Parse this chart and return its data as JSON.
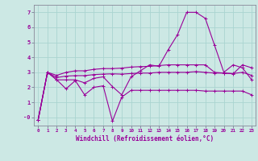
{
  "xlabel": "Windchill (Refroidissement éolien,°C)",
  "background_color": "#cce8e4",
  "grid_color": "#aad4d0",
  "line_color": "#990099",
  "xlim": [
    -0.5,
    23.4
  ],
  "ylim": [
    -0.55,
    7.5
  ],
  "xticks": [
    0,
    1,
    2,
    3,
    4,
    5,
    6,
    7,
    8,
    9,
    10,
    11,
    12,
    13,
    14,
    15,
    16,
    17,
    18,
    19,
    20,
    21,
    22,
    23
  ],
  "yticks": [
    0,
    1,
    2,
    3,
    4,
    5,
    6,
    7
  ],
  "ytick_labels": [
    "-0",
    "1",
    "2",
    "3",
    "4",
    "5",
    "6",
    "7"
  ],
  "line1_x": [
    0,
    1,
    2,
    3,
    4,
    5,
    6,
    7,
    8,
    9,
    10,
    11,
    12,
    13,
    14,
    15,
    16,
    17,
    18,
    19,
    20,
    21,
    22,
    23
  ],
  "line1_y": [
    -0.15,
    3.0,
    2.5,
    1.9,
    2.45,
    1.5,
    2.0,
    2.1,
    -0.25,
    1.35,
    1.8,
    1.8,
    1.8,
    1.8,
    1.8,
    1.8,
    1.8,
    1.8,
    1.75,
    1.75,
    1.75,
    1.75,
    1.75,
    1.5
  ],
  "line2_x": [
    0,
    1,
    2,
    3,
    4,
    5,
    6,
    7,
    8,
    9,
    10,
    11,
    12,
    13,
    14,
    15,
    16,
    17,
    18,
    19,
    20,
    21,
    22,
    23
  ],
  "line2_y": [
    -0.15,
    3.0,
    2.5,
    2.5,
    2.5,
    2.3,
    2.6,
    2.7,
    2.05,
    1.5,
    2.7,
    3.1,
    3.5,
    3.4,
    4.5,
    5.5,
    7.0,
    7.0,
    6.6,
    4.8,
    3.0,
    3.5,
    3.3,
    2.5
  ],
  "line3_x": [
    0,
    1,
    2,
    3,
    4,
    5,
    6,
    7,
    8,
    9,
    10,
    11,
    12,
    13,
    14,
    15,
    16,
    17,
    18,
    19,
    20,
    21,
    22,
    23
  ],
  "line3_y": [
    -0.15,
    3.0,
    2.8,
    3.0,
    3.1,
    3.1,
    3.2,
    3.25,
    3.25,
    3.28,
    3.35,
    3.38,
    3.4,
    3.45,
    3.5,
    3.5,
    3.5,
    3.5,
    3.5,
    3.0,
    2.95,
    2.9,
    3.5,
    3.3
  ],
  "line4_x": [
    0,
    1,
    2,
    3,
    4,
    5,
    6,
    7,
    8,
    9,
    10,
    11,
    12,
    13,
    14,
    15,
    16,
    17,
    18,
    19,
    20,
    21,
    22,
    23
  ],
  "line4_y": [
    -0.15,
    3.0,
    2.65,
    2.75,
    2.78,
    2.78,
    2.85,
    2.88,
    2.9,
    2.88,
    2.92,
    2.95,
    2.95,
    3.0,
    3.0,
    3.0,
    3.0,
    3.05,
    3.0,
    2.95,
    2.95,
    2.92,
    3.0,
    2.8
  ]
}
